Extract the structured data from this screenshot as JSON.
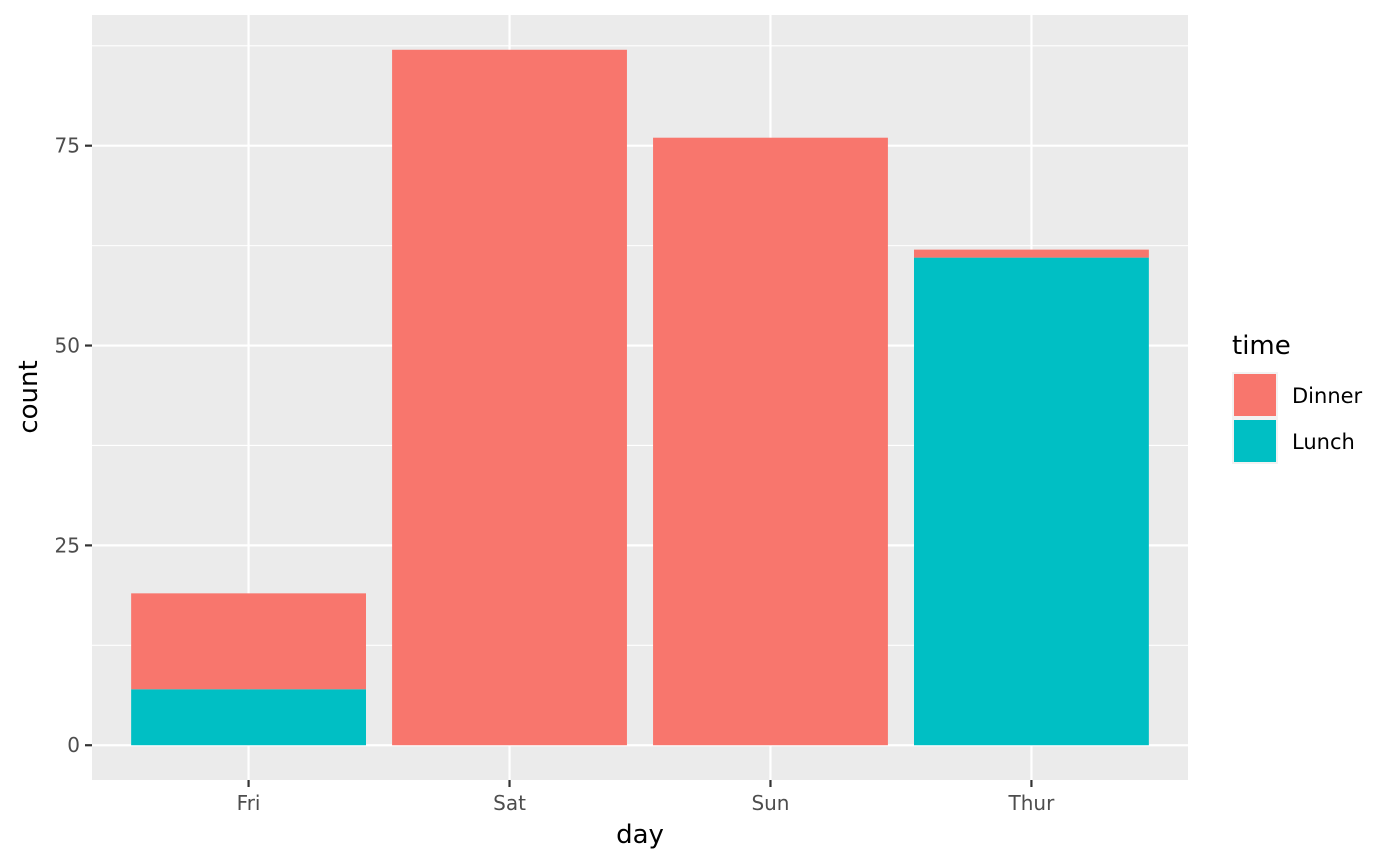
{
  "chart_data": {
    "type": "bar",
    "stacked": true,
    "title": "",
    "xlabel": "day",
    "ylabel": "count",
    "categories": [
      "Fri",
      "Sat",
      "Sun",
      "Thur"
    ],
    "series": [
      {
        "name": "Lunch",
        "values": [
          7,
          0,
          0,
          61
        ],
        "color": "#00BFC4"
      },
      {
        "name": "Dinner",
        "values": [
          12,
          87,
          76,
          1
        ],
        "color": "#F8766D"
      }
    ],
    "ylim": [
      -4.35,
      91.35
    ],
    "yticks": [
      0,
      25,
      50,
      75
    ],
    "grid": true,
    "legend": {
      "title": "time",
      "position": "right",
      "entries": [
        "Dinner",
        "Lunch"
      ]
    },
    "panel_background": "#EBEBEB",
    "grid_color": "#FFFFFF"
  }
}
